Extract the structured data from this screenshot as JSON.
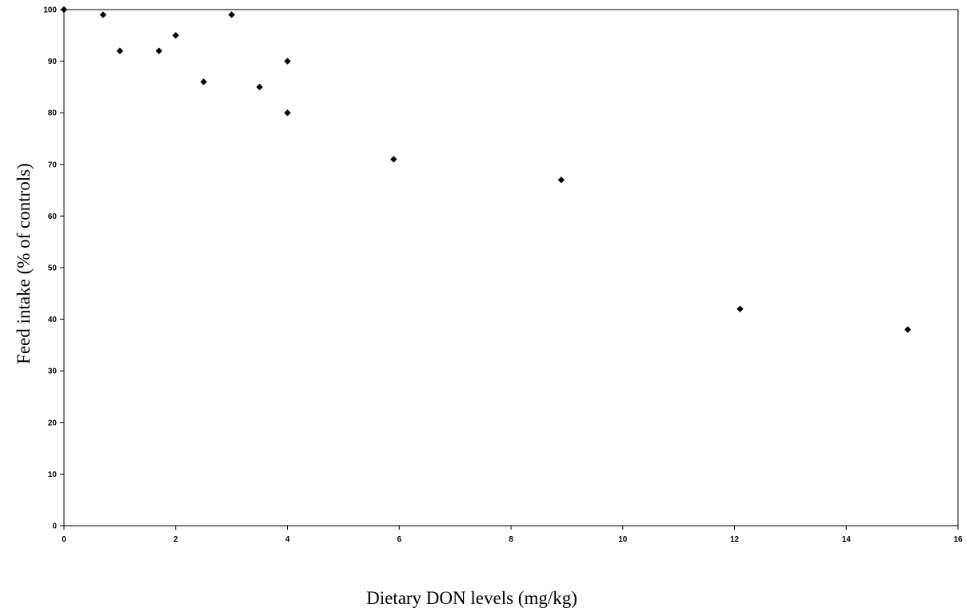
{
  "chart_data": {
    "type": "scatter",
    "title": "",
    "xlabel": "Dietary DON levels (mg/kg)",
    "ylabel": "Feed intake (% of controls)",
    "xlim": [
      0,
      16
    ],
    "ylim": [
      0,
      100
    ],
    "xticks": [
      0,
      2,
      4,
      6,
      8,
      10,
      12,
      14,
      16
    ],
    "yticks": [
      0,
      10,
      20,
      30,
      40,
      50,
      60,
      70,
      80,
      90,
      100
    ],
    "grid": false,
    "legend": "none",
    "marker": "diamond",
    "marker_color": "#000000",
    "points": [
      {
        "x": 0,
        "y": 100
      },
      {
        "x": 0.7,
        "y": 99
      },
      {
        "x": 1.0,
        "y": 92
      },
      {
        "x": 1.7,
        "y": 92
      },
      {
        "x": 2.0,
        "y": 95
      },
      {
        "x": 2.5,
        "y": 86
      },
      {
        "x": 3.0,
        "y": 99
      },
      {
        "x": 3.5,
        "y": 85
      },
      {
        "x": 4.0,
        "y": 90
      },
      {
        "x": 4.0,
        "y": 80
      },
      {
        "x": 5.9,
        "y": 71
      },
      {
        "x": 8.9,
        "y": 67
      },
      {
        "x": 12.1,
        "y": 42
      },
      {
        "x": 15.1,
        "y": 38
      }
    ]
  }
}
